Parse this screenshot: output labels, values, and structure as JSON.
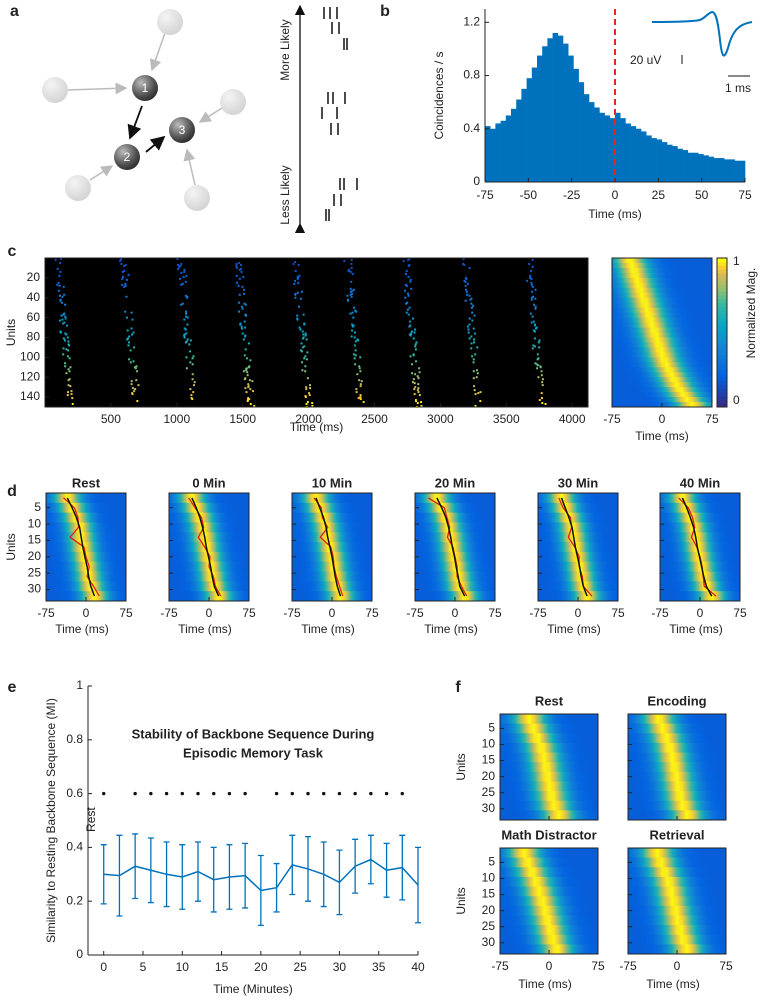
{
  "network": {
    "label": "a",
    "nodes": [
      "1",
      "2",
      "3"
    ],
    "more": "More Likely",
    "less": "Less Likely"
  },
  "chart_data": [
    {
      "type": "histogram",
      "label": "b",
      "ylabel": "Coincidences / s",
      "xlabel": "Time (ms)",
      "bins": [
        -75,
        -72,
        -69,
        -66,
        -63,
        -60,
        -57,
        -54,
        -51,
        -48,
        -45,
        -42,
        -39,
        -36,
        -33,
        -30,
        -27,
        -24,
        -21,
        -18,
        -15,
        -12,
        -9,
        -6,
        -3,
        0,
        3,
        6,
        9,
        12,
        15,
        18,
        21,
        24,
        27,
        30,
        33,
        36,
        39,
        42,
        45,
        48,
        51,
        54,
        57,
        60,
        63,
        66,
        69,
        72,
        75
      ],
      "values": [
        0.42,
        0.4,
        0.44,
        0.46,
        0.5,
        0.55,
        0.62,
        0.7,
        0.78,
        0.86,
        0.95,
        1.02,
        1.08,
        1.12,
        1.1,
        1.04,
        0.95,
        0.85,
        0.75,
        0.66,
        0.6,
        0.56,
        0.52,
        0.5,
        0.48,
        0.52,
        0.48,
        0.44,
        0.42,
        0.4,
        0.38,
        0.35,
        0.33,
        0.32,
        0.3,
        0.28,
        0.27,
        0.25,
        0.24,
        0.22,
        0.22,
        0.21,
        0.2,
        0.19,
        0.18,
        0.18,
        0.17,
        0.17,
        0.16,
        0.16
      ],
      "color": "#0072bd",
      "xlim": [
        -75,
        75
      ],
      "ylim": [
        0,
        1.3
      ],
      "xticks": [
        -75,
        -50,
        -25,
        0,
        25,
        50,
        75
      ],
      "yticks": [
        0,
        0.4,
        0.8,
        1.2
      ],
      "vline": {
        "x": 0,
        "color": "#e8261c"
      },
      "scale_labels": [
        "20 uV",
        "1 ms"
      ]
    },
    {
      "type": "raster",
      "label": "c",
      "xlabel": "Time (ms)",
      "ylabel": "Units",
      "xlim": [
        0,
        4120
      ],
      "ylim": [
        0,
        150
      ],
      "xticks": [
        500,
        1000,
        1500,
        2000,
        2500,
        3000,
        3500,
        4000
      ],
      "yticks": [
        20,
        40,
        60,
        80,
        100,
        120,
        140
      ],
      "burst_times": [
        129,
        630,
        1063,
        1495,
        1935,
        2329,
        2769,
        3225,
        3703
      ]
    },
    {
      "type": "heatmap",
      "xlabel": "Time (ms)",
      "xlim": [
        -75,
        75
      ],
      "xticks": [
        -75,
        0,
        75
      ],
      "colorbar": {
        "label": "Normalized Mag.",
        "ticks": [
          0,
          1
        ]
      },
      "panels": [
        {
          "peaks": [
            -48,
            -45,
            -42,
            -40,
            -37,
            -35,
            -32,
            -30,
            -27,
            -25,
            -22,
            -20,
            -17,
            -15,
            -12,
            -10,
            -7,
            -5,
            -2,
            0,
            3,
            6,
            10,
            14,
            18,
            22,
            27,
            32,
            38,
            45
          ]
        }
      ]
    },
    {
      "type": "heatmap",
      "label": "d",
      "ylabel": "Units",
      "xlabel": "Time (ms)",
      "xlim": [
        -75,
        75
      ],
      "xticks": [
        -75,
        0,
        75
      ],
      "ylim": [
        0.5,
        33.5
      ],
      "yticks": [
        5,
        10,
        15,
        20,
        25,
        30
      ],
      "panels": [
        {
          "title": "Rest",
          "peaks": [
            -35,
            -26,
            -18,
            -12,
            -9,
            -6,
            -2,
            2,
            5,
            9,
            16
          ],
          "observed": [
            -42,
            -22,
            -15,
            -14,
            -30,
            -4,
            0,
            6,
            2,
            14,
            25
          ]
        },
        {
          "title": "0 Min",
          "peaks": [
            -32,
            -24,
            -17,
            -12,
            -8,
            -5,
            -1,
            3,
            6,
            10,
            18
          ],
          "observed": [
            -38,
            -26,
            -14,
            -10,
            -20,
            -8,
            2,
            0,
            8,
            12,
            22
          ]
        },
        {
          "title": "10 Min",
          "peaks": [
            -30,
            -23,
            -16,
            -11,
            -8,
            -4,
            0,
            3,
            6,
            10,
            16
          ],
          "observed": [
            -34,
            -20,
            -18,
            -8,
            -22,
            -2,
            2,
            4,
            8,
            14,
            20
          ]
        },
        {
          "title": "20 Min",
          "peaks": [
            -34,
            -25,
            -17,
            -12,
            -8,
            -5,
            -1,
            2,
            6,
            9,
            18
          ],
          "observed": [
            -50,
            -20,
            -15,
            -10,
            -14,
            -4,
            0,
            4,
            4,
            12,
            22
          ]
        },
        {
          "title": "30 Min",
          "peaks": [
            -31,
            -24,
            -17,
            -11,
            -8,
            -5,
            -1,
            3,
            6,
            10,
            17
          ],
          "observed": [
            -36,
            -28,
            -14,
            -12,
            -18,
            -6,
            2,
            2,
            8,
            10,
            26
          ]
        },
        {
          "title": "40 Min",
          "peaks": [
            -33,
            -25,
            -18,
            -12,
            -8,
            -5,
            -1,
            3,
            7,
            12,
            22
          ],
          "observed": [
            -40,
            -22,
            -14,
            -10,
            -16,
            -6,
            0,
            4,
            6,
            8,
            30
          ]
        }
      ]
    },
    {
      "type": "line",
      "label": "e",
      "title": [
        "Stability of Backbone Sequence During",
        "Episodic Memory Task"
      ],
      "ylabel": "Similarity to Resting Backbone Sequence (MI)",
      "xlabel": "Time (Minutes)",
      "x": [
        0,
        2,
        4,
        6,
        8,
        10,
        12,
        14,
        16,
        18,
        20,
        22,
        24,
        26,
        28,
        30,
        32,
        34,
        36,
        38,
        40
      ],
      "series": [
        {
          "color": "#0072bd",
          "values": [
            0.3,
            0.295,
            0.33,
            0.315,
            0.3,
            0.29,
            0.31,
            0.28,
            0.29,
            0.295,
            0.24,
            0.25,
            0.335,
            0.32,
            0.3,
            0.27,
            0.33,
            0.355,
            0.315,
            0.325,
            0.26
          ],
          "errors": [
            0.11,
            0.15,
            0.12,
            0.12,
            0.12,
            0.12,
            0.11,
            0.12,
            0.12,
            0.12,
            0.13,
            0.09,
            0.11,
            0.12,
            0.12,
            0.12,
            0.1,
            0.09,
            0.1,
            0.12,
            0.14
          ]
        }
      ],
      "xlim": [
        -2,
        40
      ],
      "ylim": [
        0,
        1
      ],
      "xticks": [
        0,
        5,
        10,
        15,
        20,
        25,
        30,
        35,
        40
      ],
      "yticks": [
        0,
        0.2,
        0.4,
        0.6,
        0.8,
        1
      ],
      "significance": {
        "x": [
          0,
          4,
          6,
          8,
          10,
          12,
          14,
          16,
          18,
          22,
          24,
          26,
          28,
          30,
          32,
          34,
          36,
          38
        ],
        "y": 0.6
      },
      "annotation": "Rest"
    },
    {
      "type": "heatmap",
      "label": "f",
      "ylabel": "Units",
      "xlabel": "Time (ms)",
      "xlim": [
        -75,
        75
      ],
      "xticks": [
        -75,
        0,
        75
      ],
      "ylim": [
        0.5,
        33.5
      ],
      "yticks": [
        5,
        10,
        15,
        20,
        25,
        30
      ],
      "panels": [
        {
          "title": "Rest",
          "peaks": [
            -30,
            -24,
            -18,
            -12,
            -8,
            -5,
            -2,
            1,
            4,
            8,
            15
          ]
        },
        {
          "title": "Encoding",
          "peaks": [
            -28,
            -22,
            -16,
            -11,
            -7,
            -4,
            -1,
            2,
            5,
            9,
            16
          ]
        },
        {
          "title": "Math Distractor",
          "peaks": [
            -38,
            -32,
            -26,
            -20,
            -15,
            -10,
            -6,
            -2,
            2,
            6,
            12
          ]
        },
        {
          "title": "Retrieval",
          "peaks": [
            -30,
            -25,
            -19,
            -13,
            -9,
            -6,
            -2,
            1,
            5,
            9,
            15
          ]
        }
      ]
    }
  ]
}
